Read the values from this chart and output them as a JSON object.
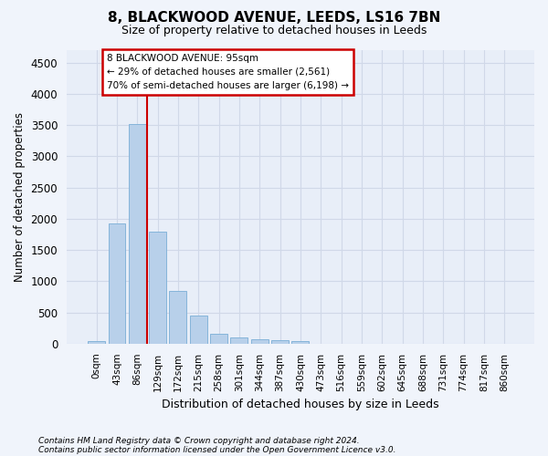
{
  "title_line1": "8, BLACKWOOD AVENUE, LEEDS, LS16 7BN",
  "title_line2": "Size of property relative to detached houses in Leeds",
  "xlabel": "Distribution of detached houses by size in Leeds",
  "ylabel": "Number of detached properties",
  "bar_color": "#b8d0ea",
  "bar_edge_color": "#7aaed6",
  "categories": [
    "0sqm",
    "43sqm",
    "86sqm",
    "129sqm",
    "172sqm",
    "215sqm",
    "258sqm",
    "301sqm",
    "344sqm",
    "387sqm",
    "430sqm",
    "473sqm",
    "516sqm",
    "559sqm",
    "602sqm",
    "645sqm",
    "688sqm",
    "731sqm",
    "774sqm",
    "817sqm",
    "860sqm"
  ],
  "values": [
    40,
    1920,
    3510,
    1790,
    840,
    455,
    160,
    95,
    70,
    55,
    45,
    0,
    0,
    0,
    0,
    0,
    0,
    0,
    0,
    0,
    0
  ],
  "ylim": [
    0,
    4700
  ],
  "yticks": [
    0,
    500,
    1000,
    1500,
    2000,
    2500,
    3000,
    3500,
    4000,
    4500
  ],
  "vline_x": 2.5,
  "vline_color": "#cc0000",
  "annotation_line1": "8 BLACKWOOD AVENUE: 95sqm",
  "annotation_line2": "← 29% of detached houses are smaller (2,561)",
  "annotation_line3": "70% of semi-detached houses are larger (6,198) →",
  "annotation_box_color": "#ffffff",
  "annotation_box_edge": "#cc0000",
  "background_color": "#f0f4fb",
  "plot_bg_color": "#e8eef8",
  "grid_color": "#d0d8e8",
  "footnote_line1": "Contains HM Land Registry data © Crown copyright and database right 2024.",
  "footnote_line2": "Contains public sector information licensed under the Open Government Licence v3.0."
}
